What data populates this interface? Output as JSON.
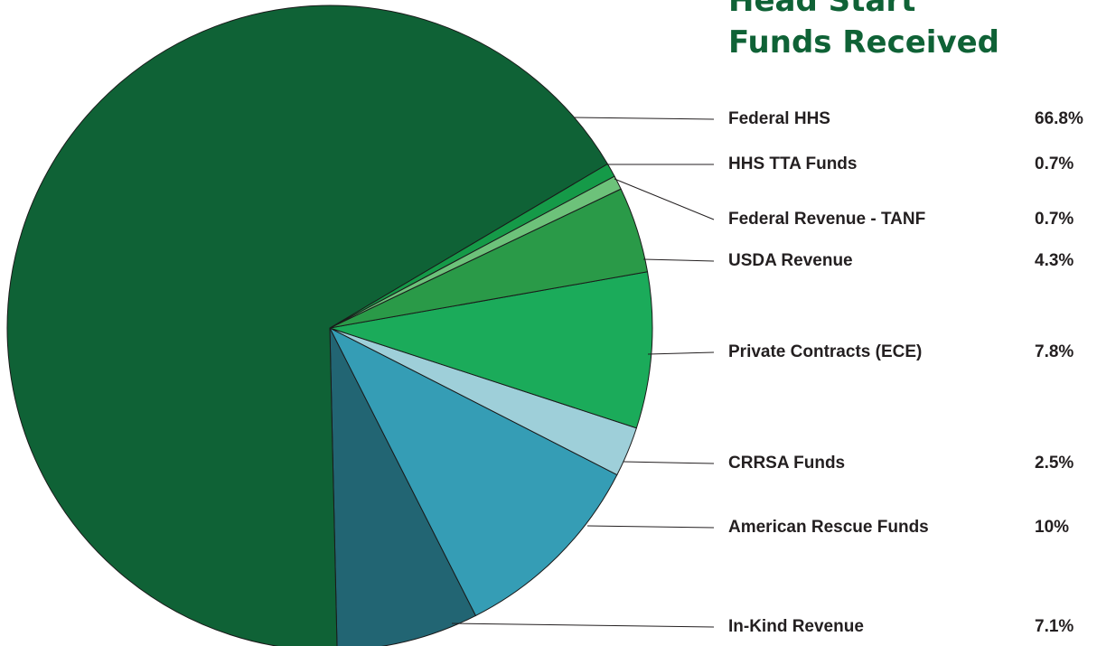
{
  "chart_data": {
    "type": "pie",
    "title": "Head Start Funds Received",
    "categories": [
      "Federal HHS",
      "HHS TTA Funds",
      "Federal Revenue - TANF",
      "USDA Revenue",
      "Private Contracts (ECE)",
      "CRRSA Funds",
      "American Rescue Funds",
      "In-Kind Revenue"
    ],
    "values": [
      66.8,
      0.7,
      0.7,
      4.3,
      7.8,
      2.5,
      10,
      7.1
    ],
    "value_labels": [
      "66.8%",
      "0.7%",
      "0.7%",
      "4.3%",
      "7.8%",
      "2.5%",
      "10%",
      "7.1%"
    ],
    "colors": [
      "#0f6236",
      "#159a48",
      "#6dc27a",
      "#2a9a48",
      "#1bab5a",
      "#9ecfd9",
      "#359db5",
      "#226573"
    ]
  }
}
